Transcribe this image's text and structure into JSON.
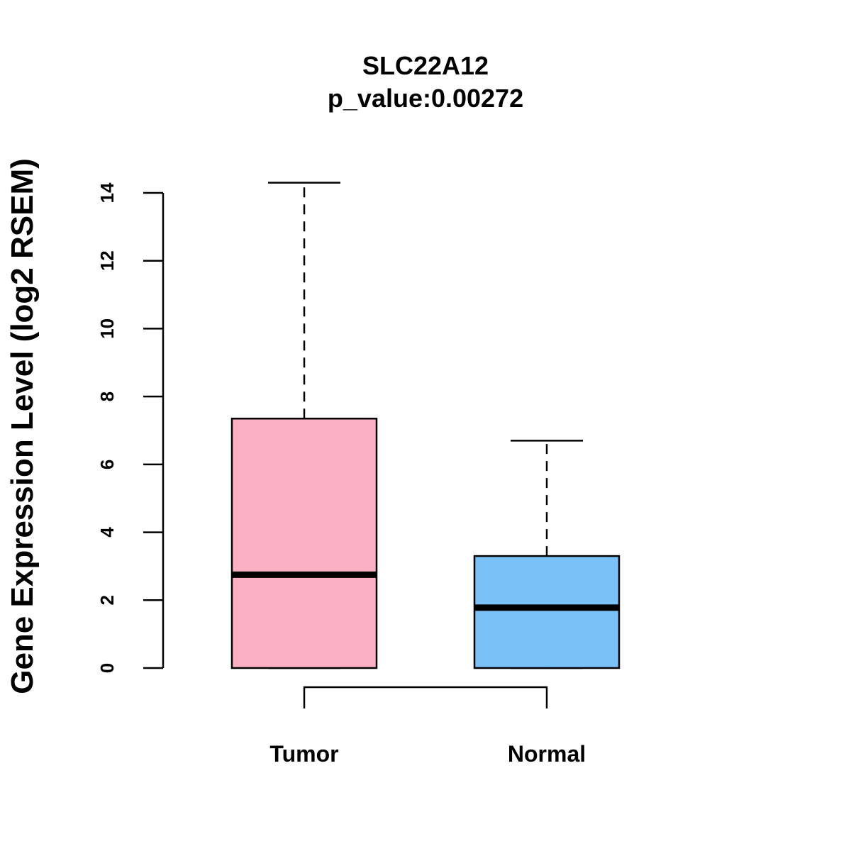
{
  "chart_data": {
    "type": "boxplot",
    "title": "SLC22A12",
    "subtitle": "p_value:0.00272",
    "xlabel": "",
    "ylabel": "Gene Expression Level (log2 RSEM)",
    "ylim": [
      0,
      14
    ],
    "yticks": [
      "0",
      "2",
      "4",
      "6",
      "8",
      "10",
      "12",
      "14"
    ],
    "grid": false,
    "categories": [
      "Tumor",
      "Normal"
    ],
    "boxes": [
      {
        "name": "Tumor",
        "min": 0,
        "q1": 0,
        "median": 2.75,
        "q3": 7.35,
        "max": 14.3,
        "color": "#FBB1C3"
      },
      {
        "name": "Normal",
        "min": 0,
        "q1": 0,
        "median": 1.78,
        "q3": 3.3,
        "max": 6.7,
        "color": "#79C1F6"
      }
    ],
    "comparison_bracket": [
      "Tumor",
      "Normal"
    ]
  }
}
